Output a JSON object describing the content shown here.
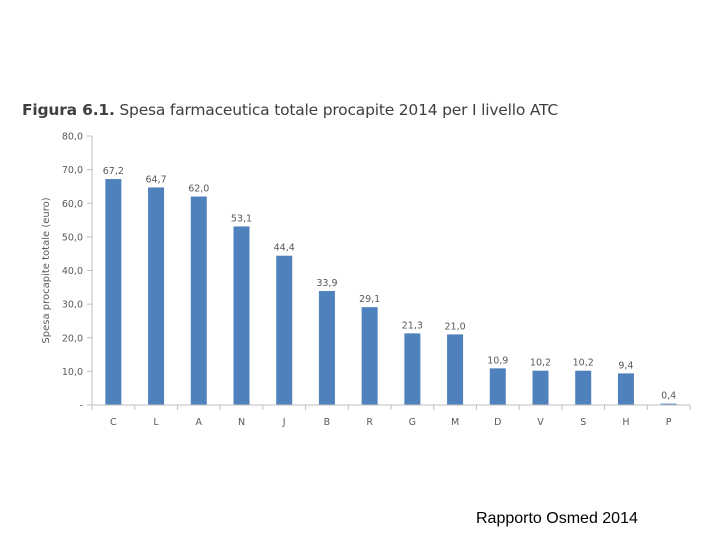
{
  "title": {
    "prefix": "Figura 6.1.",
    "text": "Spesa farmaceutica totale procapite 2014 per I livello ATC"
  },
  "footer": "Rapporto Osmed 2014",
  "colors": {
    "bar": "#4F81BD",
    "axis": "#BFBFBF",
    "text": "#595959"
  },
  "chart_data": {
    "type": "bar",
    "title": "Figura 6.1. Spesa farmaceutica totale procapite 2014 per I livello ATC",
    "xlabel": "",
    "ylabel": "Spesa procapite totale (euro)",
    "categories": [
      "C",
      "L",
      "A",
      "N",
      "J",
      "B",
      "R",
      "G",
      "M",
      "D",
      "V",
      "S",
      "H",
      "P"
    ],
    "values": [
      67.2,
      64.7,
      62.0,
      53.1,
      44.4,
      33.9,
      29.1,
      21.3,
      21.0,
      10.9,
      10.2,
      10.2,
      9.4,
      0.4
    ],
    "data_labels": [
      "67,2",
      "64,7",
      "62,0",
      "53,1",
      "44,4",
      "33,9",
      "29,1",
      "21,3",
      "21,0",
      "10,9",
      "10,2",
      "10,2",
      "9,4",
      "0,4"
    ],
    "ylim": [
      0,
      80
    ],
    "yticks": [
      0,
      10,
      20,
      30,
      40,
      50,
      60,
      70,
      80
    ],
    "ytick_labels": [
      "-",
      "10,0",
      "20,0",
      "30,0",
      "40,0",
      "50,0",
      "60,0",
      "70,0",
      "80,0"
    ],
    "grid": false,
    "legend": "none"
  }
}
